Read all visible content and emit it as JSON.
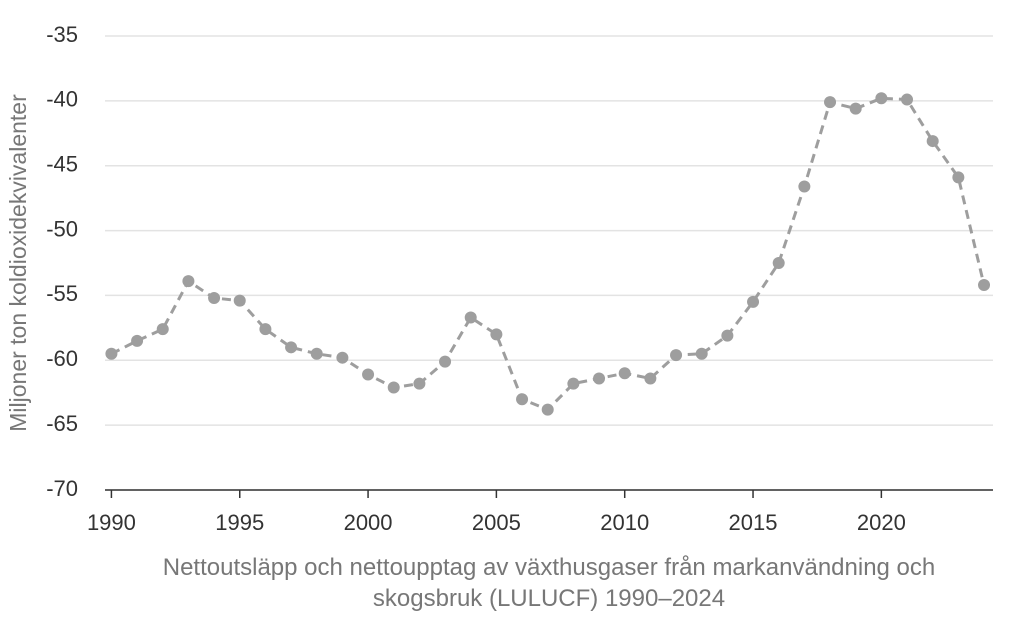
{
  "chart_data": {
    "type": "line",
    "x_label": "Nettoutsläpp och nettoupptag av växthusgaser från markanvändning och skogsbruk (LULUCF) 1990–2024",
    "y_label": "Miljoner ton koldioxidekvivalenter",
    "x": [
      1990,
      1991,
      1992,
      1993,
      1994,
      1995,
      1996,
      1997,
      1998,
      1999,
      2000,
      2001,
      2002,
      2003,
      2004,
      2005,
      2006,
      2007,
      2008,
      2009,
      2010,
      2011,
      2012,
      2013,
      2014,
      2015,
      2016,
      2017,
      2018,
      2019,
      2020,
      2021,
      2022,
      2023,
      2024
    ],
    "series": [
      {
        "color": "#9e9e9e",
        "values": [
          -59.5,
          -58.5,
          -57.6,
          -53.9,
          -55.2,
          -55.4,
          -57.6,
          -59.0,
          -59.5,
          -59.8,
          -61.1,
          -62.1,
          -61.8,
          -60.1,
          -56.7,
          -58.0,
          -63.0,
          -63.8,
          -61.8,
          -61.4,
          -61.0,
          -61.4,
          -59.6,
          -59.5,
          -58.1,
          -55.5,
          -52.5,
          -46.6,
          -40.1,
          -40.6,
          -39.8,
          -39.9,
          -43.1,
          -45.9,
          -54.2
        ]
      }
    ],
    "xlim": [
      1989.75,
      2024.35
    ],
    "xticks": [
      1990,
      1995,
      2000,
      2005,
      2010,
      2015,
      2020
    ],
    "ylim": [
      -70,
      -35
    ],
    "yticks": [
      -70,
      -65,
      -60,
      -55,
      -50,
      -45,
      -40,
      -35
    ],
    "grid": true
  }
}
